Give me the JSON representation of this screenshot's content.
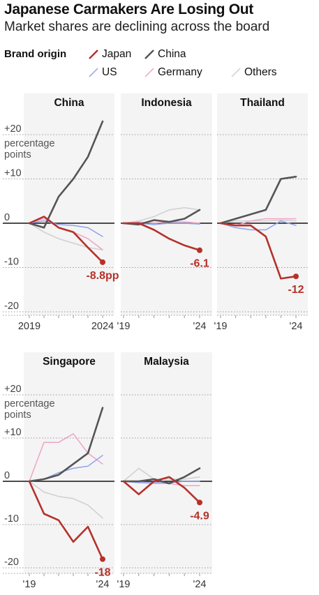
{
  "title": "Japanese Carmakers Are Losing Out",
  "subtitle": "Market shares are declining across the board",
  "legend": {
    "label": "Brand origin",
    "items": [
      {
        "name": "Japan",
        "color": "#b5312b",
        "icon": "line-swatch"
      },
      {
        "name": "China",
        "color": "#555555",
        "icon": "line-swatch"
      },
      {
        "name": "US",
        "color": "#8ea3ec",
        "icon": "line-swatch"
      },
      {
        "name": "Germany",
        "color": "#f0a3c7",
        "icon": "line-swatch"
      },
      {
        "name": "Others",
        "color": "#cfcfcf",
        "icon": "line-swatch"
      }
    ]
  },
  "chart_data": [
    {
      "type": "line",
      "title": "China",
      "ylim": [
        -22,
        24
      ],
      "yticks": [
        20,
        10,
        0,
        -10,
        -20
      ],
      "ytick_labels": [
        "+20",
        "+10",
        "0",
        "-10",
        "-20"
      ],
      "yunit_label": "percentage points",
      "x": [
        2019,
        2020,
        2021,
        2022,
        2023,
        2024
      ],
      "xtick_labels": [
        "2019",
        "2024"
      ],
      "series": [
        {
          "name": "Others",
          "color": "#cfcfcf",
          "values": [
            0,
            -2,
            -3.5,
            -4.5,
            -5.5,
            -6
          ]
        },
        {
          "name": "Germany",
          "color": "#f0a3c7",
          "values": [
            0,
            1,
            -1,
            -2,
            -3.5,
            -6
          ]
        },
        {
          "name": "US",
          "color": "#8ea3ec",
          "values": [
            0,
            0.5,
            -0.3,
            -0.5,
            -1,
            -3
          ]
        },
        {
          "name": "China",
          "color": "#555555",
          "values": [
            0,
            -1,
            6,
            10,
            15,
            23
          ]
        },
        {
          "name": "Japan",
          "color": "#b5312b",
          "values": [
            0,
            1.5,
            -1,
            -2,
            -5.5,
            -8.8
          ]
        }
      ],
      "annotation": {
        "series": "Japan",
        "label": "-8.8pp"
      }
    },
    {
      "type": "line",
      "title": "Indonesia",
      "ylim": [
        -22,
        24
      ],
      "yticks": [
        20,
        10,
        0,
        -10,
        -20
      ],
      "x": [
        2019,
        2020,
        2021,
        2022,
        2023,
        2024
      ],
      "xtick_labels": [
        "'19",
        "'24"
      ],
      "series": [
        {
          "name": "Others",
          "color": "#cfcfcf",
          "values": [
            0,
            0.5,
            1.5,
            3,
            3.5,
            3
          ]
        },
        {
          "name": "Germany",
          "color": "#f0a3c7",
          "values": [
            0,
            0.3,
            0,
            0.3,
            0.3,
            0
          ]
        },
        {
          "name": "US",
          "color": "#8ea3ec",
          "values": [
            0,
            0,
            -0.3,
            0,
            0,
            -0.2
          ]
        },
        {
          "name": "China",
          "color": "#555555",
          "values": [
            0,
            -0.3,
            0.7,
            0.3,
            1,
            3
          ]
        },
        {
          "name": "Japan",
          "color": "#b5312b",
          "values": [
            0,
            0,
            -1.5,
            -3.5,
            -5,
            -6.1
          ]
        }
      ],
      "annotation": {
        "series": "Japan",
        "label": "-6.1"
      }
    },
    {
      "type": "line",
      "title": "Thailand",
      "ylim": [
        -22,
        24
      ],
      "yticks": [
        20,
        10,
        0,
        -10,
        -20
      ],
      "x": [
        2019,
        2020,
        2021,
        2022,
        2023,
        2024
      ],
      "xtick_labels": [
        "'19",
        "'24"
      ],
      "series": [
        {
          "name": "Others",
          "color": "#cfcfcf",
          "values": [
            0,
            0.5,
            0.5,
            0.5,
            0.7,
            0.5
          ]
        },
        {
          "name": "Germany",
          "color": "#f0a3c7",
          "values": [
            0,
            -0.5,
            0.5,
            1,
            1,
            1
          ]
        },
        {
          "name": "US",
          "color": "#8ea3ec",
          "values": [
            0,
            -1,
            -1.5,
            -1.5,
            0.5,
            -0.5
          ]
        },
        {
          "name": "China",
          "color": "#555555",
          "values": [
            0,
            1,
            2,
            3,
            10,
            10.5
          ]
        },
        {
          "name": "Japan",
          "color": "#b5312b",
          "values": [
            0,
            -0.5,
            -0.5,
            -3,
            -12.5,
            -12
          ]
        }
      ],
      "annotation": {
        "series": "Japan",
        "label": "-12"
      }
    },
    {
      "type": "line",
      "title": "Singapore",
      "ylim": [
        -22,
        24
      ],
      "yticks": [
        20,
        10,
        0,
        -10,
        -20
      ],
      "ytick_labels": [
        "+20",
        "+10",
        "0",
        "-10",
        "-20"
      ],
      "yunit_label": "percentage points",
      "x": [
        2019,
        2020,
        2021,
        2022,
        2023,
        2024
      ],
      "xtick_labels": [
        "'19",
        "'24"
      ],
      "series": [
        {
          "name": "Others",
          "color": "#cfcfcf",
          "values": [
            0,
            -2.5,
            -3.5,
            -4,
            -5.5,
            -8.5
          ]
        },
        {
          "name": "Germany",
          "color": "#f0a3c7",
          "values": [
            0,
            9,
            9,
            11,
            6.5,
            4
          ]
        },
        {
          "name": "US",
          "color": "#8ea3ec",
          "values": [
            0,
            0.5,
            2,
            3,
            3.5,
            6
          ]
        },
        {
          "name": "China",
          "color": "#555555",
          "values": [
            0,
            0.5,
            1.5,
            4,
            6.5,
            17
          ]
        },
        {
          "name": "Japan",
          "color": "#b5312b",
          "values": [
            0,
            -7.5,
            -9,
            -14,
            -10.5,
            -18
          ]
        }
      ],
      "annotation": {
        "series": "Japan",
        "label": "-18"
      }
    },
    {
      "type": "line",
      "title": "Malaysia",
      "ylim": [
        -22,
        24
      ],
      "yticks": [
        20,
        10,
        0,
        -10,
        -20
      ],
      "x": [
        2019,
        2020,
        2021,
        2022,
        2023,
        2024
      ],
      "xtick_labels": [
        "'19",
        "'24"
      ],
      "series": [
        {
          "name": "Others",
          "color": "#cfcfcf",
          "values": [
            0,
            3,
            0.5,
            0.5,
            0.5,
            1
          ]
        },
        {
          "name": "Germany",
          "color": "#f0a3c7",
          "values": [
            0,
            -0.3,
            -0.5,
            -0.5,
            -1,
            -1
          ]
        },
        {
          "name": "US",
          "color": "#8ea3ec",
          "values": [
            0,
            -0.3,
            -0.3,
            -0.3,
            0,
            0
          ]
        },
        {
          "name": "China",
          "color": "#555555",
          "values": [
            0,
            0,
            0.5,
            -0.5,
            1,
            3
          ]
        },
        {
          "name": "Japan",
          "color": "#b5312b",
          "values": [
            0,
            -3,
            0,
            1,
            -1.5,
            -4.9
          ]
        }
      ],
      "annotation": {
        "series": "Japan",
        "label": "-4.9"
      }
    }
  ]
}
